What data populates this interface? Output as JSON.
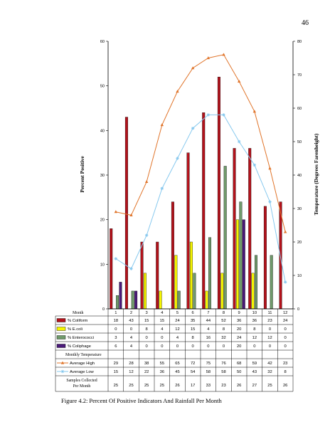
{
  "page_number": "46",
  "caption": "Figure 4.2: Percent Of Positive Indicators And Rainfall Per Month",
  "chart_data": {
    "type": "bar",
    "y_left_label": "Percent Positive",
    "y_right_label": "Temperature (Degrees Farenheight)",
    "y_left_lim": [
      0,
      60
    ],
    "y_left_ticks": [
      "0",
      "10",
      "20",
      "30",
      "40",
      "50",
      "60"
    ],
    "y_right_lim": [
      0,
      80
    ],
    "y_right_ticks": [
      "0",
      "10",
      "20",
      "30",
      "40",
      "50",
      "60",
      "70",
      "80"
    ],
    "categories": [
      "1",
      "2",
      "3",
      "4",
      "5",
      "6",
      "7",
      "8",
      "9",
      "10",
      "11",
      "12"
    ],
    "bar_series": [
      {
        "name": "% Coliform",
        "color": "#b3121b",
        "values": [
          18,
          43,
          15,
          15,
          24,
          35,
          44,
          52,
          36,
          36,
          23,
          24
        ]
      },
      {
        "name": "% E.coli",
        "color": "#f5f500",
        "values": [
          0,
          0,
          8,
          4,
          12,
          15,
          4,
          8,
          20,
          8,
          0,
          0
        ]
      },
      {
        "name": "% Enterococci",
        "color": "#6f9a6a",
        "values": [
          3,
          4,
          0,
          0,
          4,
          8,
          16,
          32,
          24,
          12,
          12,
          0
        ]
      },
      {
        "name": "% Coliphage",
        "color": "#4b1a7a",
        "values": [
          6,
          4,
          0,
          0,
          0,
          0,
          0,
          0,
          20,
          0,
          0,
          0
        ]
      }
    ],
    "line_series": [
      {
        "name": "Average High",
        "color": "#e0742a",
        "marker": "triangle",
        "values": [
          29,
          28,
          38,
          55,
          65,
          72,
          75,
          76,
          68,
          59,
          42,
          23
        ]
      },
      {
        "name": "Average Low",
        "color": "#86c8ee",
        "marker": "star",
        "values": [
          15,
          12,
          22,
          36,
          45,
          54,
          58,
          58,
          50,
          43,
          32,
          8
        ]
      }
    ]
  },
  "table": {
    "month_label": "Month",
    "monthly_temperature_label": "Monthly Temperature",
    "samples_label_line1": "Samples Collected",
    "samples_label_line2": "Per Month",
    "samples": [
      "25",
      "25",
      "25",
      "25",
      "26",
      "17",
      "33",
      "23",
      "26",
      "27",
      "25",
      "26"
    ]
  }
}
